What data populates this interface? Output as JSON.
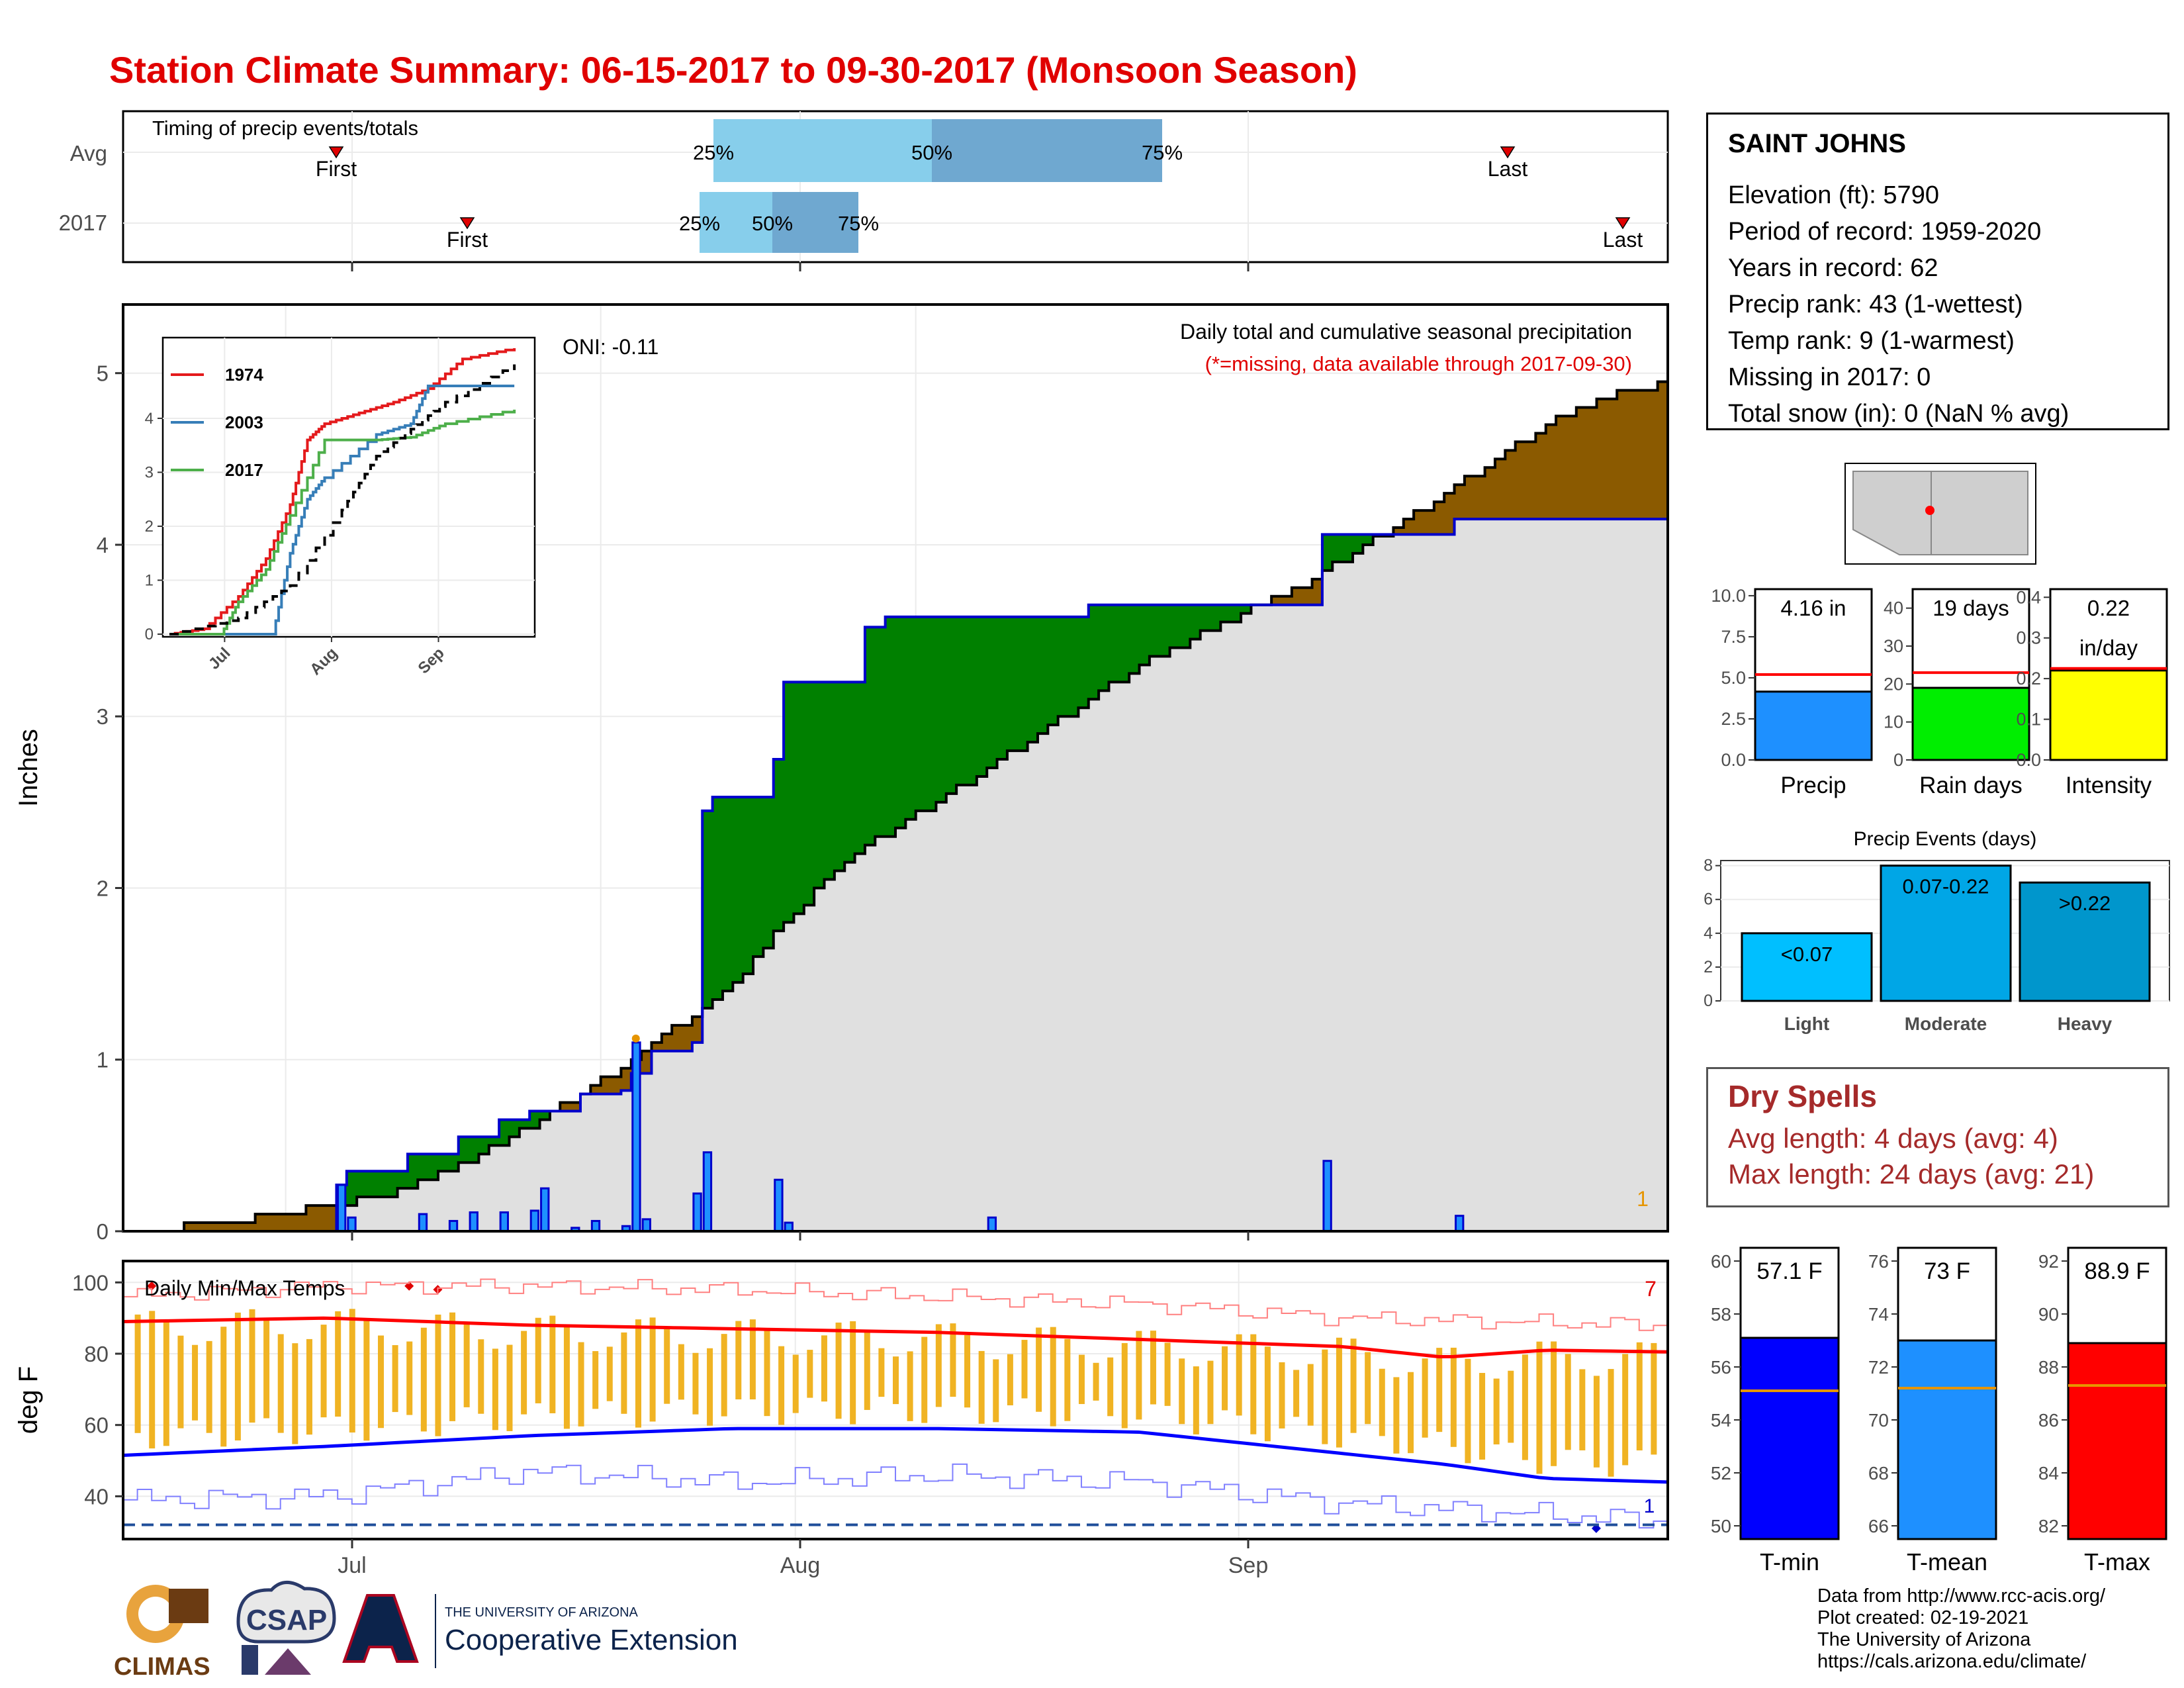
{
  "title": "Station Climate Summary: 06-15-2017 to 09-30-2017 (Monsoon Season)",
  "colors": {
    "title": "#e00000",
    "normal": "#8b5a00",
    "above": "#008000",
    "cum_line": "#0000cc",
    "bars": "#1e90ff",
    "avg_fill": "#e0e0e0"
  },
  "timing": {
    "label": "Timing of precip events/totals",
    "rows": [
      {
        "name": "Avg",
        "first": "First",
        "last": "Last",
        "p25": "25%",
        "p50": "50%",
        "p75": "75%"
      },
      {
        "name": "2017",
        "first": "First",
        "last": "Last",
        "p25": "25%",
        "p50": "50%",
        "p75": "75%"
      }
    ]
  },
  "precip_panel": {
    "title": "Daily total and cumulative seasonal precipitation",
    "note": "(*=missing, data available through 2017-09-30)",
    "oni": "ONI: -0.11",
    "ylabel": "Inches",
    "yticks": [
      "0",
      "1",
      "2",
      "3",
      "4",
      "5"
    ],
    "corner_label": "1"
  },
  "inset": {
    "legend": [
      "1974",
      "2003",
      "2017"
    ],
    "legend_colors": [
      "#e41a1c",
      "#377eb8",
      "#4daf4a"
    ],
    "yticks": [
      "0",
      "1",
      "2",
      "3",
      "4"
    ],
    "xticks": [
      "Jul",
      "Aug",
      "Sep"
    ]
  },
  "temp_panel": {
    "label": "Daily Min/Max Temps",
    "ylabel": "deg F",
    "yticks": [
      "40",
      "60",
      "80",
      "100"
    ],
    "corner_top": "7",
    "corner_bottom": "1"
  },
  "xticks": [
    "Jul",
    "Aug",
    "Sep"
  ],
  "station": {
    "name": "SAINT JOHNS",
    "elevation": "Elevation (ft): 5790",
    "period": "Period of record: 1959-2020",
    "years": "Years in record: 62",
    "precip_rank": "Precip rank: 43 (1-wettest)",
    "temp_rank": "Temp rank: 9 (1-warmest)",
    "missing": "Missing in 2017: 0",
    "snow": "Total snow (in): 0 (NaN % avg)"
  },
  "summary_bars": [
    {
      "label": "Precip",
      "value_text": "4.16 in",
      "value": 4.16,
      "avg": 5.2,
      "max": 10.4,
      "ticks": [
        "0.0",
        "2.5",
        "5.0",
        "7.5",
        "10.0"
      ],
      "color": "#1e90ff"
    },
    {
      "label": "Rain days",
      "value_text": "19 days",
      "value": 19,
      "avg": 23,
      "max": 45,
      "ticks": [
        "0",
        "10",
        "20",
        "30",
        "40"
      ],
      "color": "#00ee00"
    },
    {
      "label": "Intensity",
      "value_text": "0.22",
      "value_text2": "in/day",
      "value": 0.22,
      "avg": 0.225,
      "max": 0.42,
      "ticks": [
        "0.0",
        "0.1",
        "0.2",
        "0.3",
        "0.4"
      ],
      "color": "#ffff00"
    }
  ],
  "precip_events": {
    "title": "Precip Events (days)",
    "categories": [
      "Light",
      "Moderate",
      "Heavy"
    ],
    "ranges": [
      "<0.07",
      "0.07-0.22",
      ">0.22"
    ],
    "values": [
      4,
      8,
      7
    ],
    "colors": [
      "#00bfff",
      "#00a6e6",
      "#0096cc"
    ],
    "yticks": [
      "0",
      "2",
      "4",
      "6",
      "8"
    ]
  },
  "dry_spells": {
    "title": "Dry Spells",
    "avg": "Avg length: 4 days (avg: 4)",
    "max": "Max length: 24 days (avg: 21)"
  },
  "temp_bars": [
    {
      "label": "T-min",
      "value_text": "57.1 F",
      "value": 57.1,
      "avg": 55.1,
      "min": 49.5,
      "max": 60.5,
      "ticks": [
        "50",
        "52",
        "54",
        "56",
        "58",
        "60"
      ],
      "color": "#0000ff"
    },
    {
      "label": "T-mean",
      "value_text": "73 F",
      "value": 73.0,
      "avg": 71.2,
      "min": 65.5,
      "max": 76.5,
      "ticks": [
        "66",
        "68",
        "70",
        "72",
        "74",
        "76"
      ],
      "color": "#1e90ff"
    },
    {
      "label": "T-max",
      "value_text": "88.9 F",
      "value": 88.9,
      "avg": 87.3,
      "min": 81.5,
      "max": 92.5,
      "ticks": [
        "82",
        "84",
        "86",
        "88",
        "90",
        "92"
      ],
      "color": "#ff0000"
    }
  ],
  "credits": [
    "Data from http://www.rcc-acis.org/",
    "Plot created: 02-19-2021",
    "The University of Arizona",
    "https://cals.arizona.edu/climate/"
  ],
  "logos": {
    "climas": "CLIMAS",
    "csap": "CSAP",
    "ua_small": "THE UNIVERSITY OF ARIZONA",
    "ua_big": "Cooperative Extension"
  },
  "chart_data": [
    {
      "type": "area",
      "title": "Daily total and cumulative seasonal precipitation",
      "ylabel": "Inches",
      "ylim": [
        0,
        5.4
      ],
      "x_range": [
        "2017-06-15",
        "2017-09-30"
      ],
      "series": [
        {
          "name": "",
          "points": [
            [
              0,
              0
            ],
            [
              5,
              0.02
            ],
            [
              10,
              0.05
            ],
            [
              15,
              0.1
            ],
            [
              20,
              0.15
            ],
            [
              25,
              0.2
            ],
            [
              30,
              0.3
            ],
            [
              35,
              0.45
            ],
            [
              40,
              0.62
            ],
            [
              45,
              0.8
            ],
            [
              50,
              1.0
            ],
            [
              55,
              1.22
            ],
            [
              60,
              1.45
            ],
            [
              65,
              1.8
            ],
            [
              70,
              2.1
            ],
            [
              75,
              2.32
            ],
            [
              80,
              2.5
            ],
            [
              85,
              2.7
            ],
            [
              90,
              2.9
            ],
            [
              95,
              3.1
            ],
            [
              100,
              3.3
            ],
            [
              105,
              3.45
            ],
            [
              110,
              3.6
            ],
            [
              115,
              3.73
            ],
            [
              120,
              3.92
            ],
            [
              125,
              4.1
            ],
            [
              130,
              4.3
            ],
            [
              135,
              4.5
            ],
            [
              140,
              4.7
            ],
            [
              145,
              4.85
            ],
            [
              152,
              4.95
            ]
          ]
        },
        {
          "name": "",
          "points": [
            [
              0,
              0
            ],
            [
              20,
              0
            ],
            [
              21,
              0.27
            ],
            [
              22,
              0.35
            ],
            [
              28,
              0.45
            ],
            [
              33,
              0.55
            ],
            [
              37,
              0.65
            ],
            [
              40,
              0.7
            ],
            [
              45,
              0.8
            ],
            [
              49,
              0.82
            ],
            [
              50,
              0.92
            ],
            [
              52,
              1.05
            ],
            [
              56,
              1.1
            ],
            [
              57,
              2.45
            ],
            [
              58,
              2.53
            ],
            [
              63,
              2.53
            ],
            [
              64,
              2.75
            ],
            [
              65,
              3.2
            ],
            [
              72,
              3.2
            ],
            [
              73,
              3.52
            ],
            [
              75,
              3.58
            ],
            [
              94,
              3.58
            ],
            [
              95,
              3.65
            ],
            [
              117,
              3.65
            ],
            [
              118,
              4.06
            ],
            [
              130,
              4.06
            ],
            [
              131,
              4.15
            ],
            [
              152,
              4.16
            ]
          ]
        }
      ],
      "daily_precip": [
        [
          21,
          0.27
        ],
        [
          22,
          0.08
        ],
        [
          29,
          0.1
        ],
        [
          32,
          0.06
        ],
        [
          34,
          0.11
        ],
        [
          37,
          0.11
        ],
        [
          40,
          0.12
        ],
        [
          41,
          0.25
        ],
        [
          44,
          0.02
        ],
        [
          46,
          0.06
        ],
        [
          49,
          0.03
        ],
        [
          50,
          1.1
        ],
        [
          51,
          0.07
        ],
        [
          56,
          0.22
        ],
        [
          57,
          0.46
        ],
        [
          64,
          0.3
        ],
        [
          65,
          0.05
        ],
        [
          85,
          0.08
        ],
        [
          118,
          0.41
        ],
        [
          131,
          0.09
        ]
      ]
    },
    {
      "type": "line",
      "title": "",
      "ylim": [
        0,
        5.3
      ],
      "x_range": [
        "2017-06-15",
        "2017-09-30"
      ],
      "series": [
        {
          "name": "1974",
          "values": [
            [
              0,
              0
            ],
            [
              10,
              0.1
            ],
            [
              20,
              0.7
            ],
            [
              28,
              1.4
            ],
            [
              35,
              2.4
            ],
            [
              40,
              3.6
            ],
            [
              45,
              3.9
            ],
            [
              55,
              4.1
            ],
            [
              65,
              4.3
            ],
            [
              75,
              4.55
            ],
            [
              85,
              5.1
            ],
            [
              100,
              5.3
            ]
          ]
        },
        {
          "name": "2003",
          "values": [
            [
              0,
              0
            ],
            [
              30,
              0
            ],
            [
              35,
              1.5
            ],
            [
              40,
              2.5
            ],
            [
              45,
              2.9
            ],
            [
              60,
              3.7
            ],
            [
              70,
              3.9
            ],
            [
              75,
              4.6
            ],
            [
              100,
              4.6
            ]
          ]
        },
        {
          "name": "2017",
          "values": [
            [
              0,
              0
            ],
            [
              15,
              0
            ],
            [
              20,
              0.6
            ],
            [
              28,
              1.2
            ],
            [
              35,
              2.2
            ],
            [
              45,
              3.6
            ],
            [
              60,
              3.6
            ],
            [
              70,
              3.65
            ],
            [
              80,
              3.9
            ],
            [
              100,
              4.16
            ]
          ]
        },
        {
          "name": "",
          "values": [
            [
              0,
              0
            ],
            [
              20,
              0.3
            ],
            [
              35,
              0.9
            ],
            [
              50,
              2.3
            ],
            [
              60,
              3.3
            ],
            [
              70,
              3.8
            ],
            [
              80,
              4.3
            ],
            [
              100,
              5.0
            ]
          ]
        }
      ]
    },
    {
      "type": "line",
      "title": "Daily Min/Max Temps",
      "ylabel": "deg F",
      "ylim": [
        28,
        106
      ],
      "x_range": [
        "2017-06-15",
        "2017-09-30"
      ],
      "series": [
        {
          "name": "",
          "values": [
            [
              0,
              89
            ],
            [
              20,
              90
            ],
            [
              40,
              88
            ],
            [
              60,
              87
            ],
            [
              80,
              86
            ],
            [
              100,
              84
            ],
            [
              120,
              82
            ],
            [
              130,
              79
            ],
            [
              140,
              81
            ],
            [
              152,
              80.5
            ]
          ]
        },
        {
          "name": "",
          "values": [
            [
              0,
              51.5
            ],
            [
              20,
              54
            ],
            [
              40,
              57
            ],
            [
              60,
              59
            ],
            [
              80,
              59
            ],
            [
              100,
              58
            ],
            [
              120,
              52
            ],
            [
              130,
              49
            ],
            [
              140,
              45
            ],
            [
              152,
              44
            ]
          ]
        },
        {
          "name": "",
          "values": [
            [
              0,
              96
            ],
            [
              20,
              99
            ],
            [
              40,
              99
            ],
            [
              60,
              98
            ],
            [
              80,
              96
            ],
            [
              100,
              94
            ],
            [
              120,
              90
            ],
            [
              152,
              88
            ]
          ]
        },
        {
          "name": "",
          "values": [
            [
              0,
              39
            ],
            [
              20,
              40
            ],
            [
              40,
              47
            ],
            [
              60,
              44
            ],
            [
              80,
              46
            ],
            [
              100,
              44
            ],
            [
              120,
              38
            ],
            [
              152,
              33
            ]
          ]
        }
      ],
      "hline": 32
    },
    {
      "type": "bar",
      "categories": [
        "Precip"
      ],
      "values": [
        4.16
      ]
    },
    {
      "type": "bar",
      "categories": [
        "Rain days"
      ],
      "values": [
        19
      ]
    },
    {
      "type": "bar",
      "categories": [
        "Intensity"
      ],
      "values": [
        0.22
      ]
    },
    {
      "type": "bar",
      "title": "Precip Events (days)",
      "categories": [
        "Light",
        "Moderate",
        "Heavy"
      ],
      "values": [
        4,
        8,
        7
      ]
    },
    {
      "type": "bar",
      "categories": [
        "T-min"
      ],
      "values": [
        57.1
      ]
    },
    {
      "type": "bar",
      "categories": [
        "T-mean"
      ],
      "values": [
        73.0
      ]
    },
    {
      "type": "bar",
      "categories": [
        "T-max"
      ],
      "values": [
        88.9
      ]
    }
  ]
}
